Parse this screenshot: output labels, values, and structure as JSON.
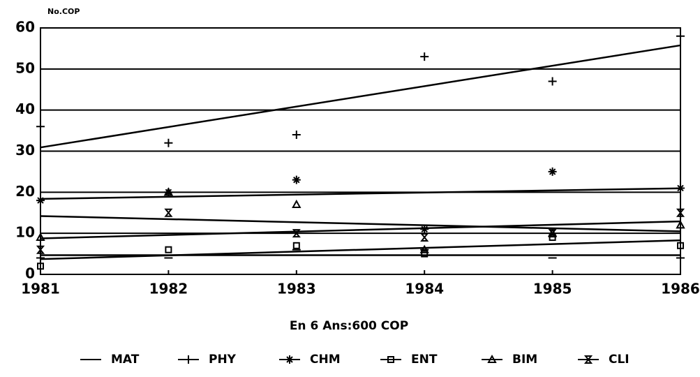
{
  "chart_data": {
    "type": "scatter",
    "y_label": "No.COP",
    "subtitle": "En 6 Ans:600 COP",
    "x": [
      1981,
      1982,
      1983,
      1984,
      1985,
      1986
    ],
    "xlim": [
      1981,
      1986
    ],
    "xticks": [
      1981,
      1982,
      1983,
      1984,
      1985,
      1986
    ],
    "ylim": [
      0,
      60
    ],
    "yticks": [
      0,
      10,
      20,
      30,
      40,
      50,
      60
    ],
    "grid": true,
    "trendline": true,
    "legend": "bottom",
    "series": [
      {
        "name": "MAT",
        "color": "#000000",
        "marker": "dash",
        "values": [
          4,
          4,
          6,
          6,
          4,
          4
        ]
      },
      {
        "name": "PHY",
        "color": "#000000",
        "marker": "plus",
        "values": [
          36,
          32,
          34,
          53,
          47,
          58
        ]
      },
      {
        "name": "CHM",
        "color": "#000000",
        "marker": "star",
        "values": [
          18,
          20,
          23,
          11,
          25,
          21
        ]
      },
      {
        "name": "ENT",
        "color": "#000000",
        "marker": "square",
        "values": [
          2,
          6,
          7,
          5,
          9,
          7
        ]
      },
      {
        "name": "BIM",
        "color": "#000000",
        "marker": "triangle",
        "values": [
          9,
          20,
          17,
          6,
          10,
          12
        ]
      },
      {
        "name": "CLI",
        "color": "#000000",
        "marker": "hourglass",
        "values": [
          6,
          15,
          10,
          9,
          10,
          15
        ]
      }
    ]
  }
}
